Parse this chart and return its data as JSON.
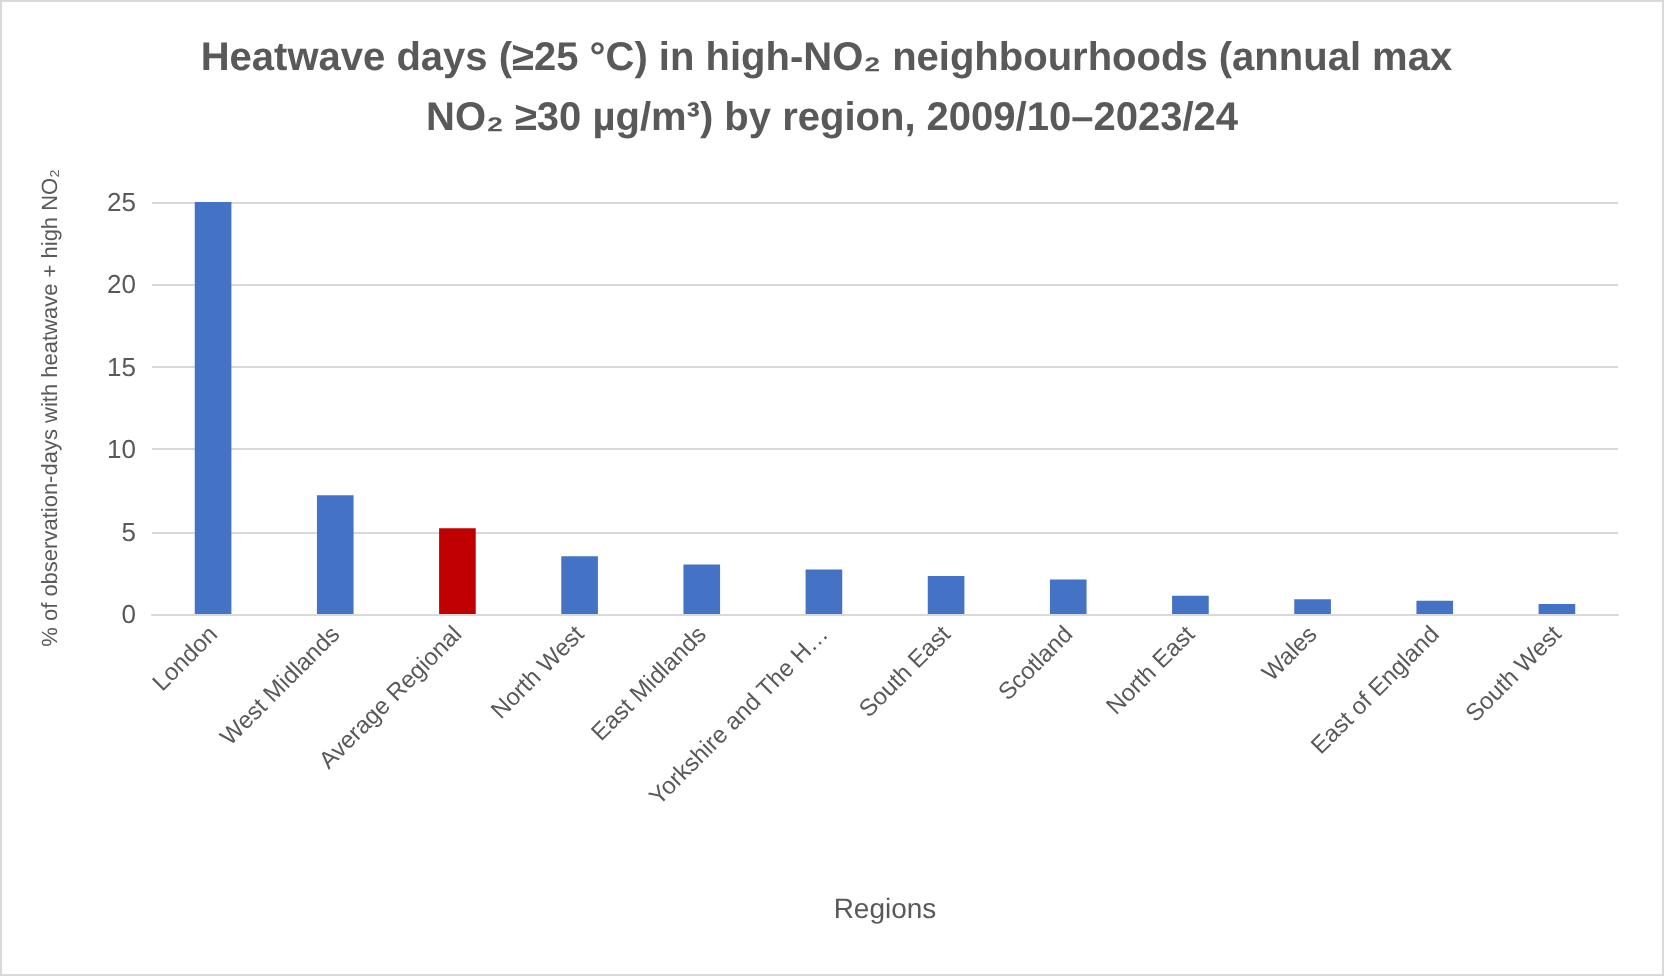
{
  "chart_data": {
    "type": "bar",
    "title": "Heatwave days (≥25 °C) in high-NO₂ neighbourhoods (annual max NO₂ ≥30 µg/m³) by region, 2009/10–2023/24",
    "xlabel": "Regions",
    "ylabel": "% of observation-days with heatwave + high NO₂",
    "categories": [
      "London",
      "West Midlands",
      "Average Regional",
      "North West",
      "East Midlands",
      "Yorkshire and The H…",
      "South East",
      "Scotland",
      "North East",
      "Wales",
      "East of England",
      "South West"
    ],
    "values": [
      25.0,
      7.2,
      5.2,
      3.5,
      3.0,
      2.7,
      2.3,
      2.1,
      1.1,
      0.9,
      0.8,
      0.6
    ],
    "colors": [
      "#4472c4",
      "#4472c4",
      "#c00000",
      "#4472c4",
      "#4472c4",
      "#4472c4",
      "#4472c4",
      "#4472c4",
      "#4472c4",
      "#4472c4",
      "#4472c4",
      "#4472c4"
    ],
    "ylim": [
      0,
      25
    ],
    "yticks": [
      0,
      5,
      10,
      15,
      20,
      25
    ],
    "grid": "y"
  }
}
